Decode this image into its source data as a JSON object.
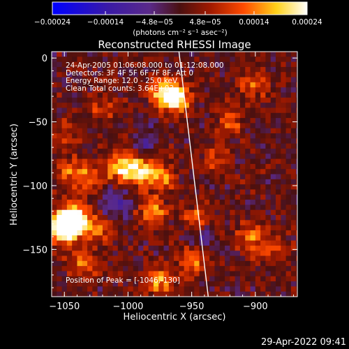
{
  "chart_data": {
    "type": "heatmap",
    "title": "Reconstructed RHESSI Image",
    "xlabel": "Heliocentric X (arcsec)",
    "ylabel": "Heliocentric Y (arcsec)",
    "xlim": [
      -1060,
      -867
    ],
    "ylim": [
      -187,
      5
    ],
    "x_ticks": [
      -1050,
      -1000,
      -950,
      -900
    ],
    "x_tick_labels": [
      "−1050",
      "−1000",
      "−950",
      "−900"
    ],
    "y_ticks": [
      0,
      -50,
      -100,
      -150
    ],
    "y_tick_labels": [
      "0",
      "−50",
      "−100",
      "−150"
    ],
    "colorbar": {
      "min": -0.00024,
      "max": 0.00024,
      "ticks": [
        -0.00024,
        -0.00014,
        -4.8e-05,
        4.8e-05,
        0.00014,
        0.00024
      ],
      "tick_labels": [
        "−0.00024",
        "−0.00014",
        "−4.8e−05",
        "4.8e−05",
        "0.00014",
        "0.00024"
      ],
      "units_label": "(photons cm⁻² s⁻¹ asec⁻²)"
    },
    "annotations": [
      "24-Apr-2005 01:06:08.000 to 01:12:08.000",
      "Detectors: 3F 4F 5F 6F 7F 8F, Att 0",
      "Energy Range: 12.0 - 25.0 keV",
      "Clean    Total counts: 3.64E+03",
      "Position of Peak = [-1046,-130]"
    ],
    "peak": [
      -1046,
      -130
    ],
    "limb_line": [
      [
        -960,
        5
      ],
      [
        -937,
        -187
      ]
    ],
    "bright_regions": [
      {
        "x": -1046,
        "y": -130,
        "value": 0.00024
      },
      {
        "x": -1040,
        "y": -125,
        "value": 0.0002
      },
      {
        "x": -1052,
        "y": -135,
        "value": 0.00018
      },
      {
        "x": -970,
        "y": -28,
        "value": 0.00022
      },
      {
        "x": -962,
        "y": -33,
        "value": 0.00016
      },
      {
        "x": -1005,
        "y": -85,
        "value": 0.0002
      },
      {
        "x": -990,
        "y": -88,
        "value": 0.00016
      },
      {
        "x": -975,
        "y": -92,
        "value": 0.00014
      },
      {
        "x": -1030,
        "y": -95,
        "value": 0.00012
      },
      {
        "x": -1045,
        "y": -88,
        "value": 0.00012
      },
      {
        "x": -1035,
        "y": -162,
        "value": 0.0001
      },
      {
        "x": -975,
        "y": -175,
        "value": 0.00014
      },
      {
        "x": -950,
        "y": -160,
        "value": 0.00012
      },
      {
        "x": -945,
        "y": -125,
        "value": 0.0001
      },
      {
        "x": -905,
        "y": -140,
        "value": 0.00012
      },
      {
        "x": -885,
        "y": -150,
        "value": 0.0001
      },
      {
        "x": -920,
        "y": -50,
        "value": 0.0001
      },
      {
        "x": -900,
        "y": -20,
        "value": 0.0001
      },
      {
        "x": -1020,
        "y": -40,
        "value": 8e-05
      },
      {
        "x": -1050,
        "y": -60,
        "value": 6e-05
      },
      {
        "x": -1020,
        "y": -135,
        "value": 0.0001
      },
      {
        "x": -980,
        "y": -120,
        "value": 0.00014
      },
      {
        "x": -930,
        "y": -80,
        "value": 8e-05
      }
    ],
    "dark_regions": [
      {
        "x": -1010,
        "y": -115,
        "value": -0.00012
      },
      {
        "x": -985,
        "y": -65,
        "value": -8e-05
      },
      {
        "x": -940,
        "y": -140,
        "value": -6e-05
      }
    ]
  },
  "footer": {
    "timestamp": "29-Apr-2022 09:41"
  }
}
